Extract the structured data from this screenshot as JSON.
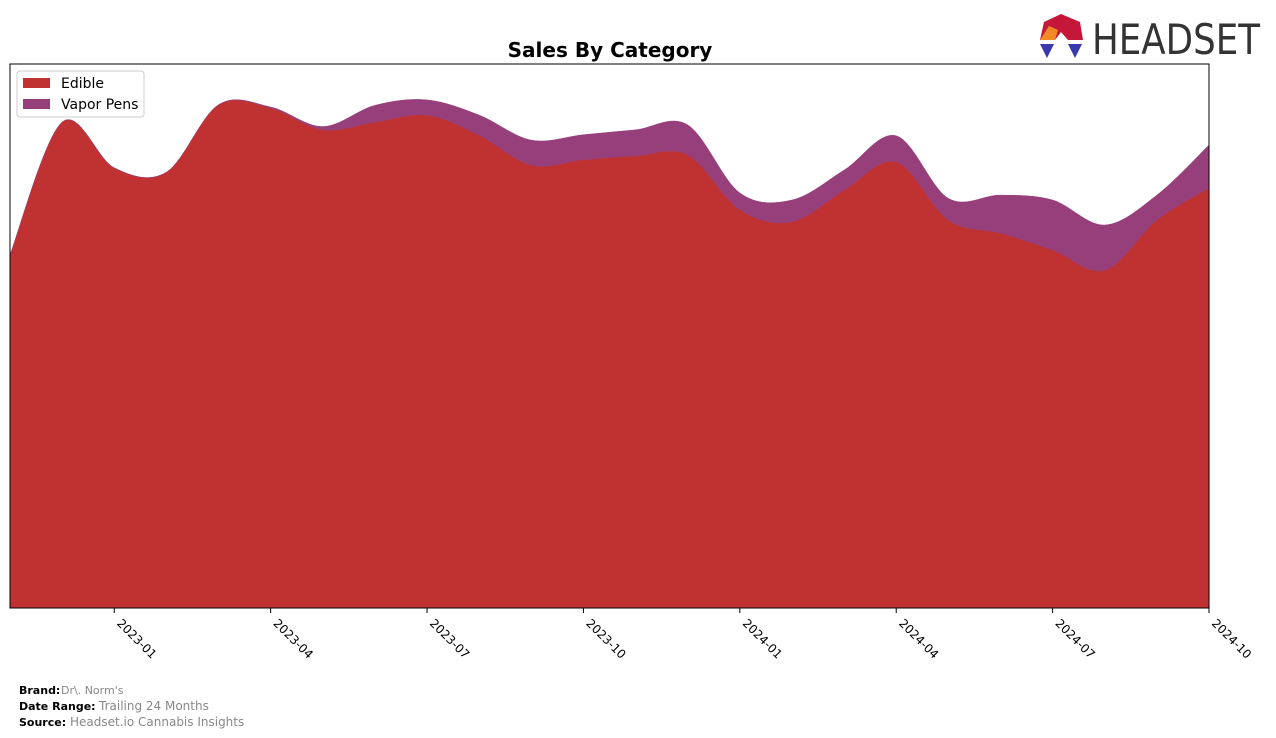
{
  "chart_data": {
    "type": "stacked-area",
    "title": "Sales By Category",
    "x": [
      "2022-11",
      "2022-12",
      "2023-01",
      "2023-02",
      "2023-03",
      "2023-04",
      "2023-05",
      "2023-06",
      "2023-07",
      "2023-08",
      "2023-09",
      "2023-10",
      "2023-11",
      "2023-12",
      "2024-01",
      "2024-02",
      "2024-03",
      "2024-04",
      "2024-05",
      "2024-06",
      "2024-07",
      "2024-08",
      "2024-09",
      "2024-10"
    ],
    "series": [
      {
        "name": "Edible",
        "color": "#c03232",
        "values": [
          64.9,
          89.3,
          80.9,
          80.1,
          92.5,
          91.9,
          87.9,
          89.3,
          90.6,
          86.9,
          81.4,
          82.4,
          83.1,
          83.3,
          73.2,
          71.0,
          76.8,
          82.0,
          71.3,
          68.9,
          65.8,
          62.1,
          71.3,
          77.2
        ]
      },
      {
        "name": "Vapor Pens",
        "color": "#973f7a",
        "values": [
          0,
          0,
          0,
          0,
          0,
          0.2,
          0.6,
          3.1,
          2.8,
          3.7,
          4.6,
          4.6,
          4.8,
          5.5,
          3.1,
          4.0,
          3.7,
          4.8,
          4.0,
          7.0,
          9.2,
          8.3,
          4.6,
          7.9
        ]
      }
    ],
    "xlim": [
      "2022-11",
      "2024-10"
    ],
    "xticks": [
      "2023-01",
      "2023-04",
      "2023-07",
      "2023-10",
      "2024-01",
      "2024-04",
      "2024-07",
      "2024-10"
    ],
    "ylim": [
      0,
      100
    ],
    "legend": "upper-left"
  },
  "logo": "HEADSET",
  "footer": {
    "brand_label": "Brand:",
    "brand": "Dr\\. Norm's",
    "range_label": "Date Range:",
    "range": "Trailing 24 Months",
    "source_label": "Source:",
    "source": "Headset.io Cannabis Insights"
  }
}
